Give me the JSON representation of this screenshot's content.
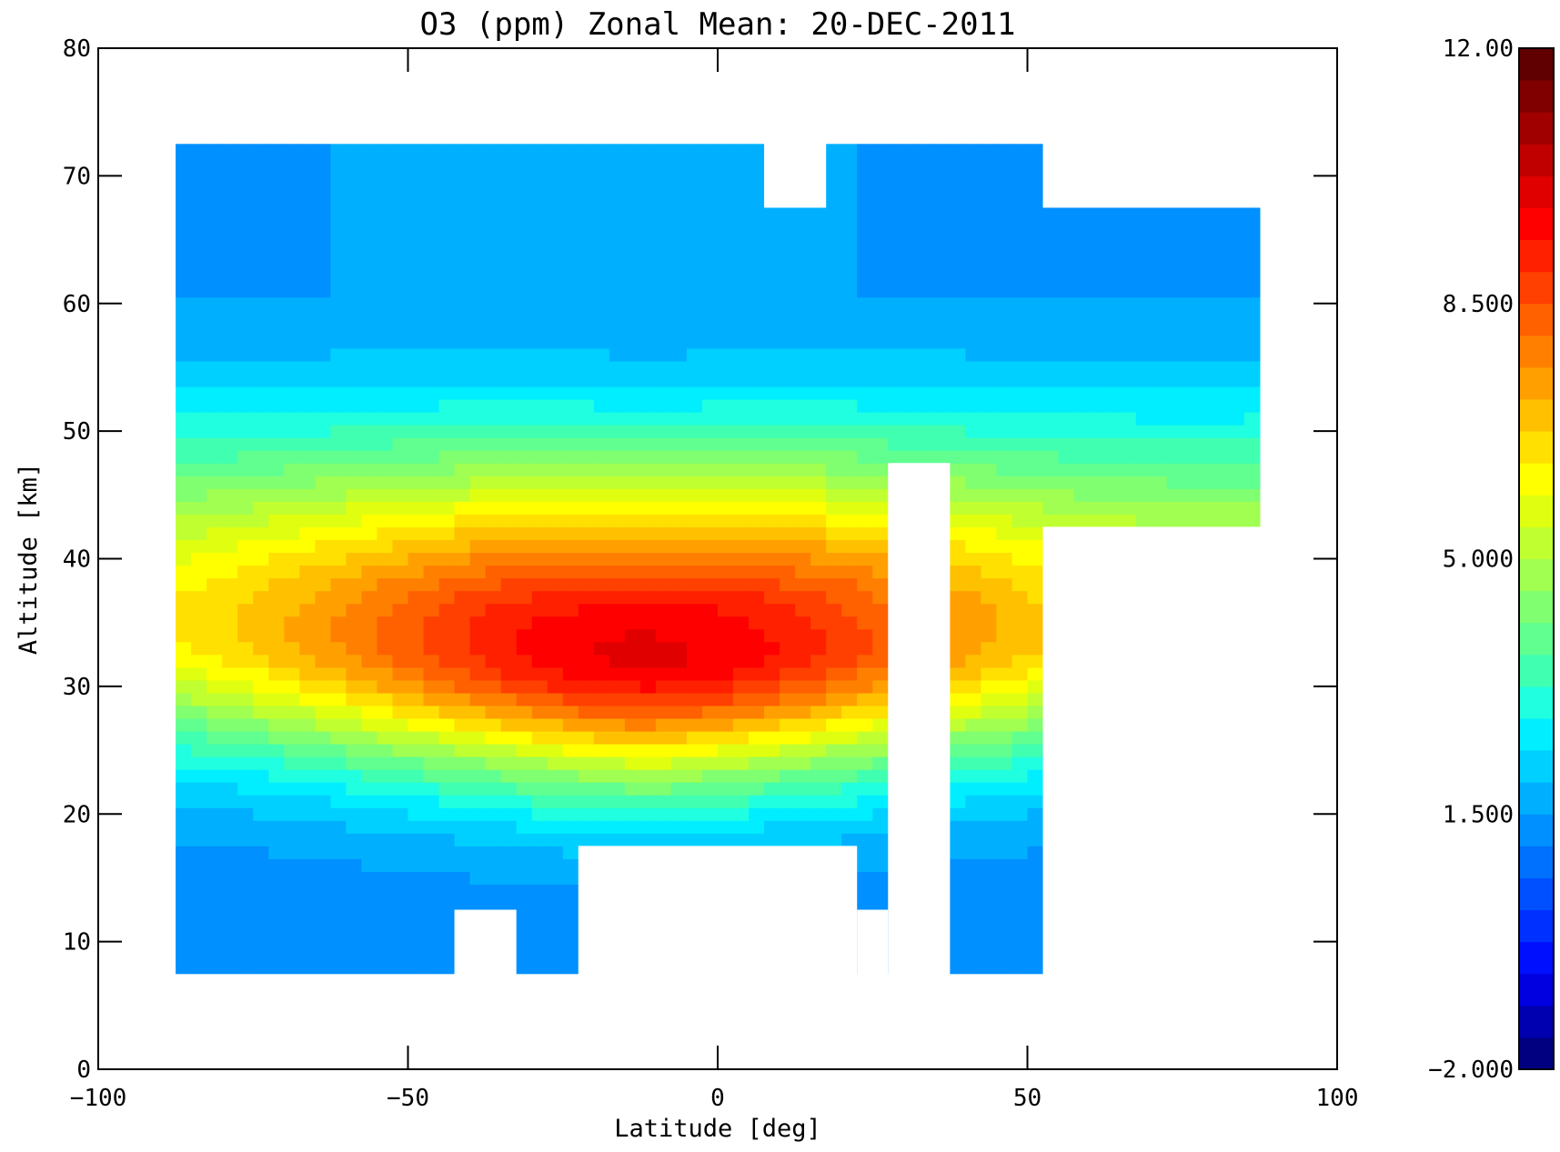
{
  "chart_data": {
    "type": "heatmap",
    "title": "O3 (ppm) Zonal Mean: 20-DEC-2011",
    "xlabel": "Latitude [deg]",
    "ylabel": "Altitude [km]",
    "xlim": [
      -100,
      100
    ],
    "ylim": [
      0,
      80
    ],
    "x_ticks": [
      "-100",
      "-50",
      "0",
      "50",
      "100"
    ],
    "y_ticks": [
      "0",
      "10",
      "20",
      "30",
      "40",
      "50",
      "60",
      "70",
      "80"
    ],
    "colorbar": {
      "range": [
        -2.0,
        12.0
      ],
      "tick_values": [
        -2.0,
        1.5,
        5.0,
        8.5,
        12.0
      ],
      "tick_labels": [
        "-2.000",
        "1.500",
        "5.000",
        "8.500",
        "12.00"
      ],
      "levels": 32,
      "colors": [
        "#000080",
        "#0000b0",
        "#0000e0",
        "#0010ff",
        "#0030ff",
        "#0050ff",
        "#0070ff",
        "#0090ff",
        "#00b0ff",
        "#00d0ff",
        "#00eeff",
        "#20ffe0",
        "#40ffb0",
        "#60ff90",
        "#80ff70",
        "#a0ff50",
        "#c0ff30",
        "#e0ff10",
        "#ffff00",
        "#ffe000",
        "#ffc000",
        "#ffa000",
        "#ff8000",
        "#ff6000",
        "#ff4000",
        "#ff2000",
        "#ff0000",
        "#e00000",
        "#c00000",
        "#a00000",
        "#800000",
        "#600000"
      ]
    },
    "data_region": {
      "lat_range": [
        -87.5,
        87.5
      ],
      "alt_range": [
        7.5,
        72.5
      ],
      "missing_boxes": [
        {
          "lat": [
            -42.5,
            -32.5
          ],
          "alt": [
            0,
            12.5
          ]
        },
        {
          "lat": [
            -22.5,
            22.5
          ],
          "alt": [
            0,
            17.5
          ]
        },
        {
          "lat": [
            22.5,
            27.5
          ],
          "alt": [
            0,
            12.5
          ]
        },
        {
          "lat": [
            27.5,
            37.5
          ],
          "alt": [
            0,
            47.5
          ]
        },
        {
          "lat": [
            52.5,
            90
          ],
          "alt": [
            0,
            42.5
          ]
        },
        {
          "lat": [
            7.5,
            17.5
          ],
          "alt": [
            67.5,
            80
          ]
        },
        {
          "lat": [
            52.5,
            90
          ],
          "alt": [
            67.5,
            80
          ]
        }
      ]
    },
    "o3_maximum": {
      "lat": -12,
      "alt": 32.5,
      "value": 10.8
    },
    "field_model": "ozone mixing ratio peaks near 32-33 km altitude with a maximum near -12 deg latitude; decreases to ~1-2 ppm above 60 km and below 15 km"
  }
}
